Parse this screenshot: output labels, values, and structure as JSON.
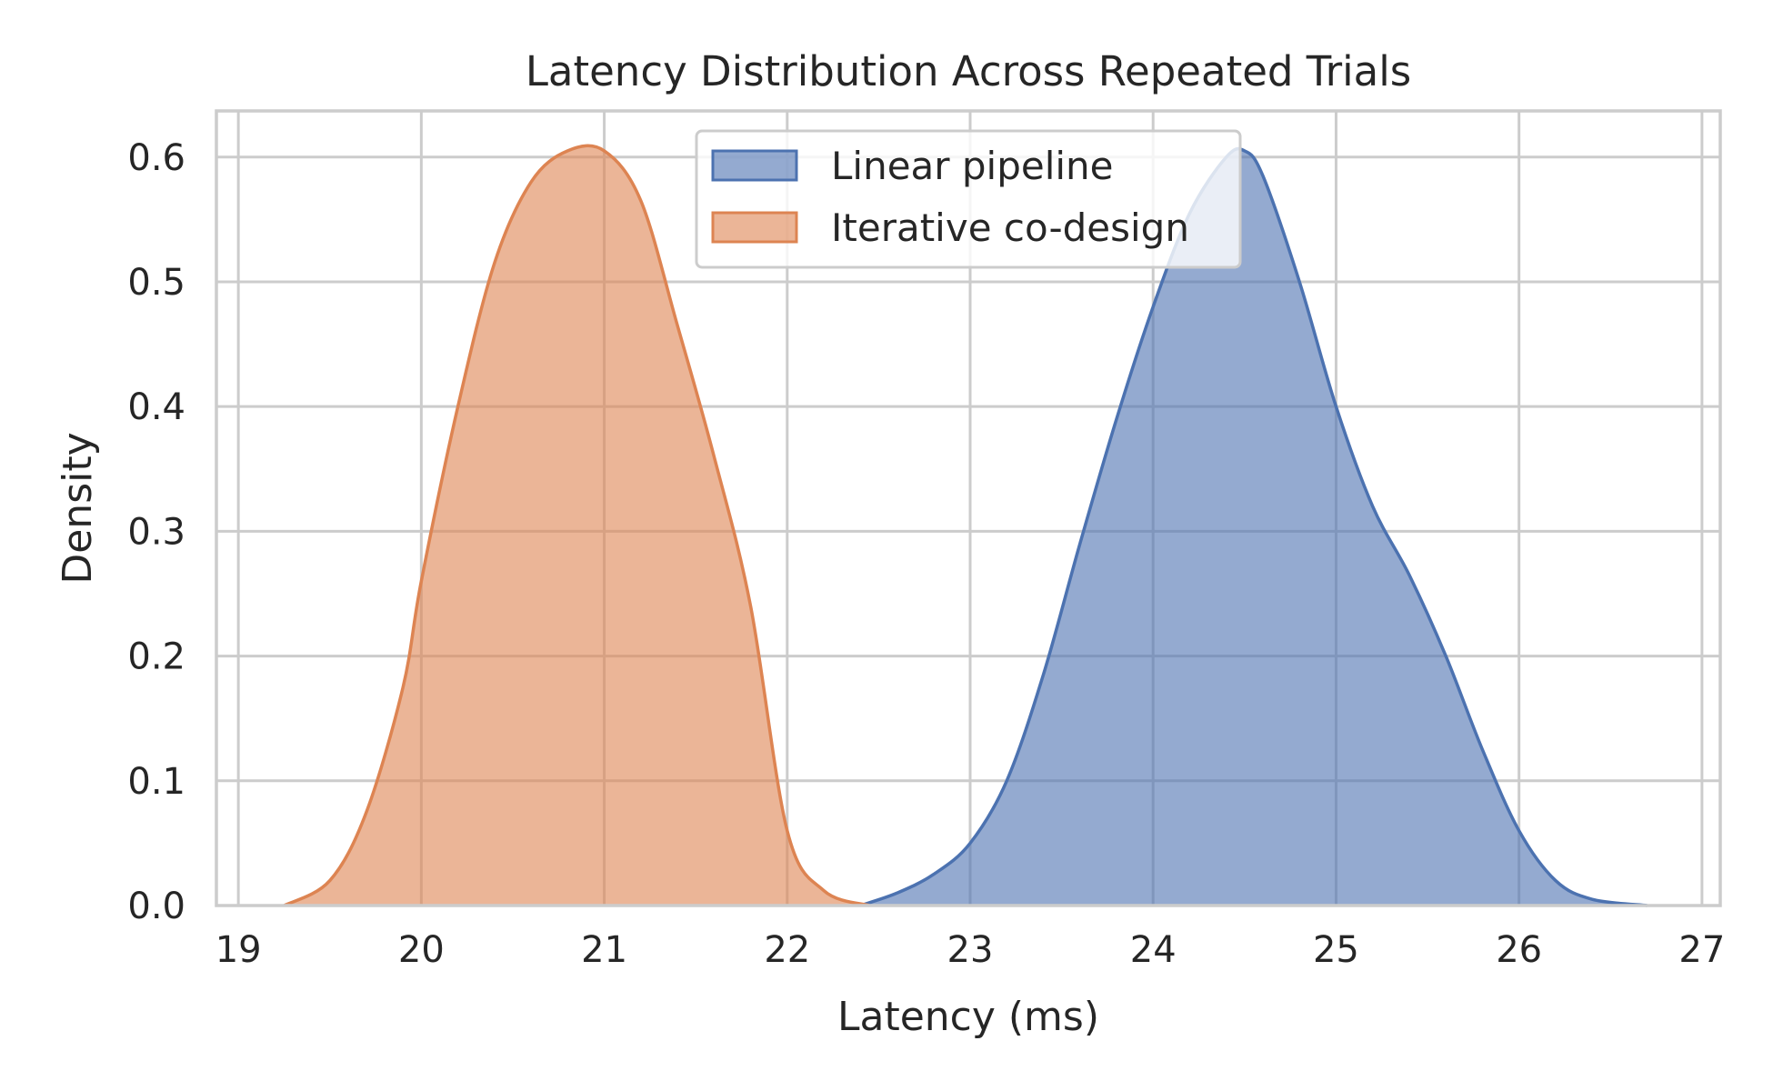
{
  "chart_data": {
    "type": "area",
    "title": "Latency Distribution Across Repeated Trials",
    "xlabel": "Latency (ms)",
    "ylabel": "Density",
    "xlim": [
      18.88,
      27.1
    ],
    "ylim": [
      0,
      0.637
    ],
    "x_ticks": [
      19,
      20,
      21,
      22,
      23,
      24,
      25,
      26,
      27
    ],
    "x_tick_labels": [
      "19",
      "20",
      "21",
      "22",
      "23",
      "24",
      "25",
      "26",
      "27"
    ],
    "y_ticks": [
      0.0,
      0.1,
      0.2,
      0.3,
      0.4,
      0.5,
      0.6
    ],
    "y_tick_labels": [
      "0.0",
      "0.1",
      "0.2",
      "0.3",
      "0.4",
      "0.5",
      "0.6"
    ],
    "grid": true,
    "legend_position": "top-center",
    "series": [
      {
        "name": "Linear pipeline",
        "color": "#4c72b0",
        "fill": "#4c72b0",
        "x": [
          22.4,
          22.6,
          22.8,
          23.0,
          23.2,
          23.4,
          23.6,
          23.8,
          24.0,
          24.2,
          24.4,
          24.5,
          24.6,
          24.8,
          25.0,
          25.2,
          25.4,
          25.6,
          25.8,
          26.0,
          26.2,
          26.4,
          26.7
        ],
        "y": [
          0.0,
          0.01,
          0.025,
          0.05,
          0.1,
          0.185,
          0.29,
          0.39,
          0.48,
          0.555,
          0.6,
          0.605,
          0.585,
          0.5,
          0.4,
          0.32,
          0.265,
          0.2,
          0.125,
          0.06,
          0.02,
          0.005,
          0.0
        ]
      },
      {
        "name": "Iterative co-design",
        "color": "#dd8452",
        "fill": "#dd8452",
        "x": [
          19.25,
          19.5,
          19.7,
          19.9,
          20.0,
          20.2,
          20.4,
          20.6,
          20.8,
          21.0,
          21.2,
          21.4,
          21.6,
          21.8,
          22.0,
          22.2,
          22.45
        ],
        "y": [
          0.0,
          0.02,
          0.075,
          0.175,
          0.26,
          0.4,
          0.515,
          0.58,
          0.605,
          0.605,
          0.565,
          0.465,
          0.36,
          0.24,
          0.06,
          0.012,
          0.0
        ]
      }
    ]
  }
}
